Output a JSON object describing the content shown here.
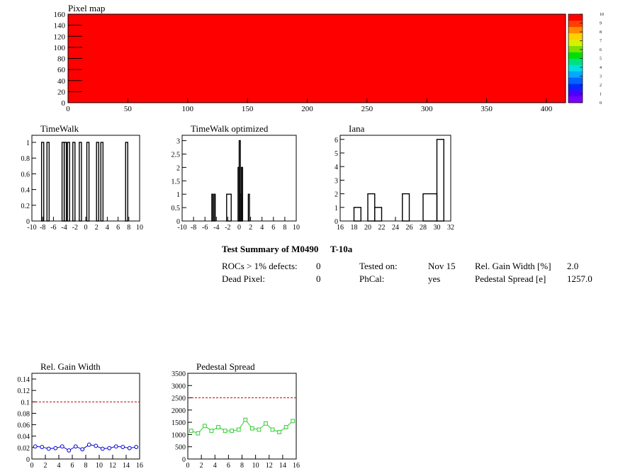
{
  "pixel_map": {
    "title": "Pixel map",
    "fill_color": "#ff0000",
    "x_ticks": [
      "0",
      "50",
      "100",
      "150",
      "200",
      "250",
      "300",
      "350",
      "400"
    ],
    "y_ticks": [
      "0",
      "20",
      "40",
      "60",
      "80",
      "100",
      "120",
      "140",
      "160"
    ],
    "colorbar_ticks": [
      "0",
      "1",
      "2",
      "3",
      "4",
      "5",
      "6",
      "7",
      "8",
      "9",
      "10"
    ]
  },
  "summary": {
    "title": "Test Summary of M0490",
    "test": "T-10a",
    "rows": [
      {
        "label": "ROCs > 1% defects:",
        "value": "0",
        "label2": "Tested on:",
        "value2": "Nov 15",
        "label3": "Rel. Gain Width [%]",
        "value3": "2.0"
      },
      {
        "label": "Dead Pixel:",
        "value": "0",
        "label2": "PhCal:",
        "value2": "yes",
        "label3": "Pedestal Spread [e]",
        "value3": "1257.0"
      }
    ]
  },
  "chart_data": [
    {
      "type": "heatmap",
      "title": "Pixel map",
      "xlim": [
        0,
        416
      ],
      "ylim": [
        0,
        160
      ],
      "zlim": [
        0,
        10
      ],
      "uniform_value": 10
    },
    {
      "type": "bar",
      "title": "TimeWalk",
      "xlim": [
        -10,
        10
      ],
      "ylim": [
        0,
        1.09
      ],
      "x_ticks": [
        "-10",
        "-8",
        "-6",
        "-4",
        "-2",
        "0",
        "2",
        "4",
        "6",
        "8",
        "10"
      ],
      "y_ticks": [
        "0",
        "0.2",
        "0.4",
        "0.6",
        "0.8",
        "1"
      ],
      "bins": [
        {
          "x0": -8.2,
          "x1": -7.8,
          "y": 1
        },
        {
          "x0": -7.2,
          "x1": -6.8,
          "y": 1
        },
        {
          "x0": -4.4,
          "x1": -4.0,
          "y": 1
        },
        {
          "x0": -4.0,
          "x1": -3.6,
          "y": 1
        },
        {
          "x0": -3.4,
          "x1": -3.0,
          "y": 1
        },
        {
          "x0": -2.4,
          "x1": -2.0,
          "y": 1
        },
        {
          "x0": -1.2,
          "x1": -0.8,
          "y": 1
        },
        {
          "x0": 0.2,
          "x1": 0.6,
          "y": 1
        },
        {
          "x0": 2.0,
          "x1": 2.4,
          "y": 1
        },
        {
          "x0": 2.8,
          "x1": 3.2,
          "y": 1
        },
        {
          "x0": 7.4,
          "x1": 7.8,
          "y": 1
        }
      ]
    },
    {
      "type": "bar",
      "title": "TimeWalk optimized",
      "xlim": [
        -10,
        10
      ],
      "ylim": [
        0,
        3.2
      ],
      "x_ticks": [
        "-10",
        "-8",
        "-6",
        "-4",
        "-2",
        "0",
        "2",
        "4",
        "6",
        "8",
        "10"
      ],
      "y_ticks": [
        "0",
        "0.5",
        "1",
        "1.5",
        "2",
        "2.5",
        "3"
      ],
      "bins": [
        {
          "x0": -4.8,
          "x1": -4.6,
          "y": 1
        },
        {
          "x0": -4.4,
          "x1": -4.2,
          "y": 1
        },
        {
          "x0": -2.2,
          "x1": -1.4,
          "y": 1
        },
        {
          "x0": -0.2,
          "x1": 0.0,
          "y": 2
        },
        {
          "x0": 0.0,
          "x1": 0.2,
          "y": 3
        },
        {
          "x0": 0.2,
          "x1": 0.4,
          "y": 1
        },
        {
          "x0": 0.4,
          "x1": 0.6,
          "y": 2
        },
        {
          "x0": 1.6,
          "x1": 1.8,
          "y": 1
        }
      ]
    },
    {
      "type": "bar",
      "title": "Iana",
      "xlim": [
        16,
        32
      ],
      "ylim": [
        0,
        6.3
      ],
      "x_ticks": [
        "16",
        "18",
        "20",
        "22",
        "24",
        "26",
        "28",
        "30",
        "32"
      ],
      "y_ticks": [
        "0",
        "1",
        "2",
        "3",
        "4",
        "5",
        "6"
      ],
      "bins": [
        {
          "x0": 18,
          "x1": 19,
          "y": 1
        },
        {
          "x0": 20,
          "x1": 21,
          "y": 2
        },
        {
          "x0": 21,
          "x1": 22,
          "y": 1
        },
        {
          "x0": 25,
          "x1": 26,
          "y": 2
        },
        {
          "x0": 28,
          "x1": 30,
          "y": 2
        },
        {
          "x0": 30,
          "x1": 31,
          "y": 6
        }
      ]
    },
    {
      "type": "line",
      "title": "Rel. Gain Width",
      "xlim": [
        0,
        16
      ],
      "ylim": [
        0,
        0.15
      ],
      "x_ticks": [
        "0",
        "2",
        "4",
        "6",
        "8",
        "10",
        "12",
        "14",
        "16"
      ],
      "y_ticks": [
        "0",
        "0.02",
        "0.04",
        "0.06",
        "0.08",
        "0.1",
        "0.12",
        "0.14"
      ],
      "threshold": 0.1,
      "x": [
        0,
        1,
        2,
        3,
        4,
        5,
        6,
        7,
        8,
        9,
        10,
        11,
        12,
        13,
        14,
        15
      ],
      "y": [
        0.022,
        0.021,
        0.018,
        0.019,
        0.022,
        0.015,
        0.022,
        0.017,
        0.025,
        0.023,
        0.018,
        0.019,
        0.022,
        0.021,
        0.019,
        0.021
      ]
    },
    {
      "type": "line",
      "title": "Pedestal Spread",
      "xlim": [
        0,
        16
      ],
      "ylim": [
        0,
        3500
      ],
      "x_ticks": [
        "0",
        "2",
        "4",
        "6",
        "8",
        "10",
        "12",
        "14",
        "16"
      ],
      "y_ticks": [
        "0",
        "500",
        "1000",
        "1500",
        "2000",
        "2500",
        "3000",
        "3500"
      ],
      "threshold": 2500,
      "x": [
        0,
        1,
        2,
        3,
        4,
        5,
        6,
        7,
        8,
        9,
        10,
        11,
        12,
        13,
        14,
        15
      ],
      "y": [
        1150,
        1050,
        1350,
        1150,
        1300,
        1150,
        1150,
        1200,
        1600,
        1250,
        1200,
        1450,
        1200,
        1100,
        1300,
        1550
      ]
    }
  ]
}
